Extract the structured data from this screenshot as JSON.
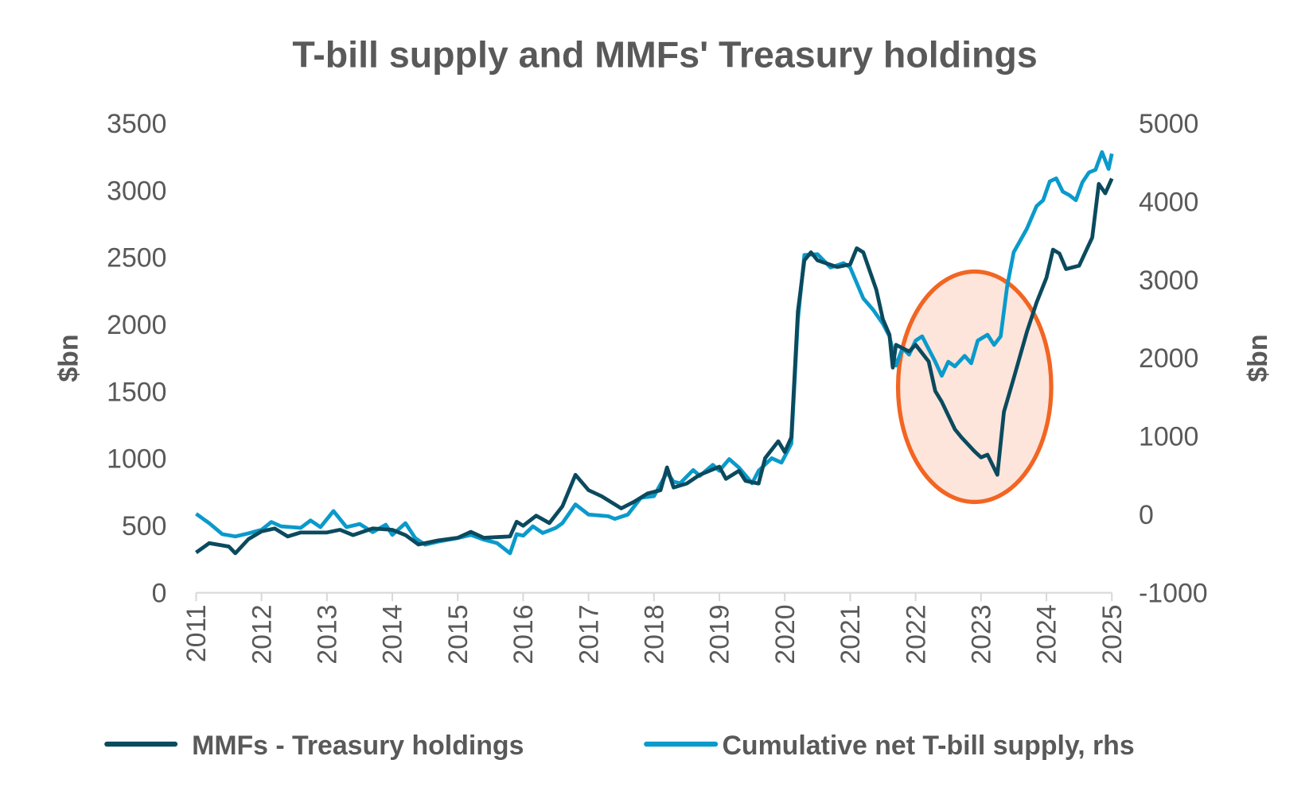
{
  "chart_data": {
    "type": "line",
    "title": "T-bill supply and MMFs' Treasury holdings",
    "xlabel": "",
    "ylabel": "$bn",
    "ylabel_right": "$bn",
    "x_ticks": [
      "2011",
      "2012",
      "2013",
      "2014",
      "2015",
      "2016",
      "2017",
      "2018",
      "2019",
      "2020",
      "2021",
      "2022",
      "2023",
      "2024",
      "2025"
    ],
    "xlim": [
      2011,
      2025
    ],
    "ylim": [
      0,
      3500
    ],
    "ylim_right": [
      -1000,
      5000
    ],
    "y_ticks": [
      "0",
      "500",
      "1000",
      "1500",
      "2000",
      "2500",
      "3000",
      "3500"
    ],
    "y_ticks_right": [
      "-1000",
      "0",
      "1000",
      "2000",
      "3000",
      "4000",
      "5000"
    ],
    "grid": false,
    "legend_position": "bottom",
    "annotation": {
      "shape": "ellipse",
      "stroke": "#f26522",
      "fill": "#fde5db",
      "period": "2022-2023"
    },
    "series": [
      {
        "name": "MMFs - Treasury holdings",
        "axis": "left",
        "color": "#0b4a5e",
        "points": [
          [
            2011.0,
            300
          ],
          [
            2011.2,
            370
          ],
          [
            2011.5,
            345
          ],
          [
            2011.6,
            295
          ],
          [
            2011.8,
            400
          ],
          [
            2012.0,
            458
          ],
          [
            2012.2,
            480
          ],
          [
            2012.4,
            420
          ],
          [
            2012.6,
            450
          ],
          [
            2013.0,
            450
          ],
          [
            2013.2,
            470
          ],
          [
            2013.4,
            430
          ],
          [
            2013.7,
            480
          ],
          [
            2014.0,
            470
          ],
          [
            2014.2,
            430
          ],
          [
            2014.4,
            360
          ],
          [
            2014.7,
            390
          ],
          [
            2015.0,
            410
          ],
          [
            2015.2,
            455
          ],
          [
            2015.4,
            410
          ],
          [
            2015.8,
            420
          ],
          [
            2015.9,
            530
          ],
          [
            2016.0,
            500
          ],
          [
            2016.2,
            575
          ],
          [
            2016.4,
            520
          ],
          [
            2016.6,
            645
          ],
          [
            2016.8,
            880
          ],
          [
            2017.0,
            765
          ],
          [
            2017.2,
            720
          ],
          [
            2017.5,
            630
          ],
          [
            2017.7,
            680
          ],
          [
            2017.9,
            740
          ],
          [
            2018.1,
            765
          ],
          [
            2018.2,
            935
          ],
          [
            2018.3,
            785
          ],
          [
            2018.5,
            815
          ],
          [
            2018.7,
            880
          ],
          [
            2019.0,
            940
          ],
          [
            2019.1,
            850
          ],
          [
            2019.3,
            910
          ],
          [
            2019.4,
            835
          ],
          [
            2019.6,
            815
          ],
          [
            2019.7,
            1005
          ],
          [
            2019.9,
            1130
          ],
          [
            2020.0,
            1050
          ],
          [
            2020.1,
            1160
          ],
          [
            2020.2,
            2100
          ],
          [
            2020.3,
            2480
          ],
          [
            2020.4,
            2540
          ],
          [
            2020.5,
            2480
          ],
          [
            2020.8,
            2430
          ],
          [
            2021.0,
            2450
          ],
          [
            2021.1,
            2570
          ],
          [
            2021.2,
            2540
          ],
          [
            2021.4,
            2260
          ],
          [
            2021.5,
            2040
          ],
          [
            2021.6,
            1925
          ],
          [
            2021.65,
            1680
          ],
          [
            2021.7,
            1850
          ],
          [
            2021.9,
            1800
          ],
          [
            2022.0,
            1850
          ],
          [
            2022.2,
            1725
          ],
          [
            2022.3,
            1505
          ],
          [
            2022.4,
            1425
          ],
          [
            2022.6,
            1220
          ],
          [
            2022.7,
            1160
          ],
          [
            2022.9,
            1055
          ],
          [
            2023.0,
            1010
          ],
          [
            2023.1,
            1030
          ],
          [
            2023.25,
            880
          ],
          [
            2023.35,
            1350
          ],
          [
            2023.5,
            1600
          ],
          [
            2023.7,
            1945
          ],
          [
            2023.85,
            2165
          ],
          [
            2024.0,
            2350
          ],
          [
            2024.1,
            2560
          ],
          [
            2024.2,
            2530
          ],
          [
            2024.3,
            2415
          ],
          [
            2024.5,
            2440
          ],
          [
            2024.7,
            2650
          ],
          [
            2024.8,
            3050
          ],
          [
            2024.9,
            2980
          ],
          [
            2025.0,
            3090
          ]
        ]
      },
      {
        "name": "Cumulative net T-bill supply, rhs",
        "axis": "right",
        "color": "#0a9acb",
        "points": [
          [
            2011.0,
            10
          ],
          [
            2011.2,
            -110
          ],
          [
            2011.4,
            -250
          ],
          [
            2011.6,
            -280
          ],
          [
            2011.8,
            -240
          ],
          [
            2012.0,
            -195
          ],
          [
            2012.15,
            -95
          ],
          [
            2012.3,
            -150
          ],
          [
            2012.6,
            -170
          ],
          [
            2012.75,
            -75
          ],
          [
            2012.9,
            -160
          ],
          [
            2013.1,
            45
          ],
          [
            2013.3,
            -160
          ],
          [
            2013.5,
            -120
          ],
          [
            2013.7,
            -225
          ],
          [
            2013.9,
            -130
          ],
          [
            2014.0,
            -260
          ],
          [
            2014.2,
            -110
          ],
          [
            2014.35,
            -300
          ],
          [
            2014.5,
            -385
          ],
          [
            2014.7,
            -345
          ],
          [
            2015.0,
            -300
          ],
          [
            2015.2,
            -260
          ],
          [
            2015.4,
            -320
          ],
          [
            2015.6,
            -365
          ],
          [
            2015.8,
            -495
          ],
          [
            2015.9,
            -250
          ],
          [
            2016.0,
            -270
          ],
          [
            2016.15,
            -150
          ],
          [
            2016.3,
            -235
          ],
          [
            2016.5,
            -170
          ],
          [
            2016.6,
            -110
          ],
          [
            2016.8,
            130
          ],
          [
            2017.0,
            0
          ],
          [
            2017.3,
            -20
          ],
          [
            2017.4,
            -55
          ],
          [
            2017.6,
            0
          ],
          [
            2017.8,
            215
          ],
          [
            2018.0,
            235
          ],
          [
            2018.2,
            540
          ],
          [
            2018.3,
            420
          ],
          [
            2018.4,
            400
          ],
          [
            2018.6,
            570
          ],
          [
            2018.7,
            495
          ],
          [
            2018.9,
            635
          ],
          [
            2019.0,
            560
          ],
          [
            2019.15,
            710
          ],
          [
            2019.3,
            600
          ],
          [
            2019.5,
            400
          ],
          [
            2019.6,
            560
          ],
          [
            2019.8,
            720
          ],
          [
            2019.95,
            665
          ],
          [
            2020.1,
            905
          ],
          [
            2020.2,
            2495
          ],
          [
            2020.3,
            3320
          ],
          [
            2020.5,
            3330
          ],
          [
            2020.7,
            3160
          ],
          [
            2020.9,
            3215
          ],
          [
            2021.0,
            3160
          ],
          [
            2021.2,
            2765
          ],
          [
            2021.35,
            2620
          ],
          [
            2021.5,
            2440
          ],
          [
            2021.6,
            2280
          ],
          [
            2021.7,
            1905
          ],
          [
            2021.8,
            2130
          ],
          [
            2021.9,
            2045
          ],
          [
            2022.0,
            2225
          ],
          [
            2022.1,
            2280
          ],
          [
            2022.3,
            1955
          ],
          [
            2022.4,
            1775
          ],
          [
            2022.5,
            1955
          ],
          [
            2022.6,
            1895
          ],
          [
            2022.75,
            2030
          ],
          [
            2022.85,
            1935
          ],
          [
            2022.95,
            2225
          ],
          [
            2023.1,
            2300
          ],
          [
            2023.2,
            2170
          ],
          [
            2023.3,
            2280
          ],
          [
            2023.4,
            2925
          ],
          [
            2023.5,
            3355
          ],
          [
            2023.7,
            3655
          ],
          [
            2023.85,
            3945
          ],
          [
            2023.95,
            4020
          ],
          [
            2024.05,
            4260
          ],
          [
            2024.15,
            4300
          ],
          [
            2024.25,
            4130
          ],
          [
            2024.35,
            4085
          ],
          [
            2024.45,
            4020
          ],
          [
            2024.55,
            4250
          ],
          [
            2024.65,
            4375
          ],
          [
            2024.75,
            4410
          ],
          [
            2024.85,
            4635
          ],
          [
            2024.95,
            4420
          ],
          [
            2025.0,
            4615
          ]
        ]
      }
    ]
  }
}
